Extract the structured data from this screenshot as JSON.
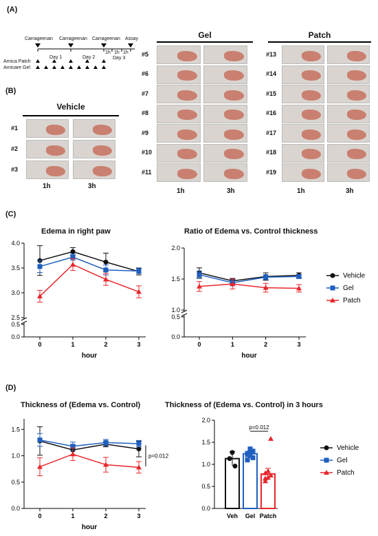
{
  "panels": {
    "a": "(A)",
    "b": "(B)",
    "c": "(C)",
    "d": "(D)"
  },
  "timeline": {
    "events": [
      "Carrageenan",
      "Carrageenan",
      "Carrageenan",
      "Assay"
    ],
    "days": [
      "Day 1",
      "Day 2",
      "Day 3"
    ],
    "hours": [
      "1h",
      "1h",
      "1h",
      "1h"
    ],
    "rows": [
      "Arnica Patch",
      "Arnicare Gel"
    ]
  },
  "groups": {
    "vehicle": {
      "title": "Vehicle",
      "ids": [
        "#1",
        "#2",
        "#3"
      ]
    },
    "gel": {
      "title": "Gel",
      "ids": [
        "#5",
        "#6",
        "#7",
        "#8",
        "#9",
        "#10",
        "#11"
      ]
    },
    "patch": {
      "title": "Patch",
      "ids": [
        "#13",
        "#14",
        "#15",
        "#16",
        "#17",
        "#18",
        "#19"
      ]
    },
    "cols": [
      "1h",
      "3h"
    ]
  },
  "colors": {
    "vehicle": "#111111",
    "gel": "#1f5fbf",
    "patch": "#e8262b"
  },
  "chart_data": [
    {
      "type": "line",
      "title": "Edema in right paw",
      "xlabel": "hour",
      "x": [
        0,
        1,
        2,
        3
      ],
      "yticks": [
        "0.0",
        "0.5",
        "2.5",
        "3.0",
        "3.5",
        "4.0"
      ],
      "ylim_upper": [
        2.5,
        4.0
      ],
      "series": [
        {
          "name": "Vehicle",
          "values": [
            3.65,
            3.83,
            3.62,
            3.43
          ],
          "err": [
            0.3,
            0.08,
            0.18,
            0.07
          ]
        },
        {
          "name": "Gel",
          "values": [
            3.53,
            3.72,
            3.46,
            3.44
          ],
          "err": [
            0.12,
            0.06,
            0.1,
            0.05
          ]
        },
        {
          "name": "Patch",
          "values": [
            2.93,
            3.57,
            3.27,
            3.02
          ],
          "err": [
            0.12,
            0.12,
            0.12,
            0.12
          ]
        }
      ]
    },
    {
      "type": "line",
      "title": "Ratio of Edema vs. Control thickness",
      "xlabel": "hour",
      "x": [
        0,
        1,
        2,
        3
      ],
      "yticks": [
        "0.0",
        "0.5",
        "1.0",
        "1.5",
        "2.0"
      ],
      "ylim_upper": [
        1.0,
        2.0
      ],
      "legend": [
        "Vehicle",
        "Gel",
        "Patch"
      ],
      "series": [
        {
          "name": "Vehicle",
          "values": [
            1.6,
            1.47,
            1.54,
            1.56
          ],
          "err": [
            0.08,
            0.04,
            0.06,
            0.04
          ]
        },
        {
          "name": "Gel",
          "values": [
            1.57,
            1.44,
            1.53,
            1.54
          ],
          "err": [
            0.06,
            0.05,
            0.04,
            0.03
          ]
        },
        {
          "name": "Patch",
          "values": [
            1.38,
            1.42,
            1.36,
            1.35
          ],
          "err": [
            0.08,
            0.08,
            0.07,
            0.06
          ]
        }
      ]
    },
    {
      "type": "line",
      "title": "Thickness of (Edema vs. Control)",
      "xlabel": "hour",
      "x": [
        0,
        1,
        2,
        3
      ],
      "yticks": [
        "0.0",
        "0.5",
        "1.0",
        "1.5"
      ],
      "ylim": [
        0,
        1.7
      ],
      "annotation": "p=0.012",
      "series": [
        {
          "name": "Vehicle",
          "values": [
            1.28,
            1.11,
            1.22,
            1.13
          ],
          "err": [
            0.27,
            0.1,
            0.05,
            0.15
          ]
        },
        {
          "name": "Gel",
          "values": [
            1.3,
            1.18,
            1.25,
            1.23
          ],
          "err": [
            0.12,
            0.08,
            0.06,
            0.06
          ]
        },
        {
          "name": "Patch",
          "values": [
            0.79,
            1.03,
            0.83,
            0.78
          ],
          "err": [
            0.17,
            0.12,
            0.14,
            0.11
          ]
        }
      ]
    },
    {
      "type": "bar",
      "title": "Thickness of (Edema vs. Control) in 3 hours",
      "categories": [
        "Veh",
        "Gel",
        "Patch"
      ],
      "yticks": [
        "0.0",
        "0.5",
        "1.0",
        "1.5",
        "2.0"
      ],
      "ylim": [
        0,
        2.0
      ],
      "annotation": "p=0.012",
      "legend": [
        "Vehicle",
        "Gel",
        "Patch"
      ],
      "values": [
        1.13,
        1.24,
        0.78
      ],
      "err": [
        0.16,
        0.07,
        0.13
      ],
      "points": [
        [
          1.13,
          1.27,
          0.96
        ],
        [
          1.1,
          1.2,
          1.3,
          1.25,
          1.35,
          1.15,
          1.22
        ],
        [
          0.62,
          0.7,
          0.75,
          0.8,
          0.85,
          1.58,
          0.68
        ]
      ]
    }
  ]
}
